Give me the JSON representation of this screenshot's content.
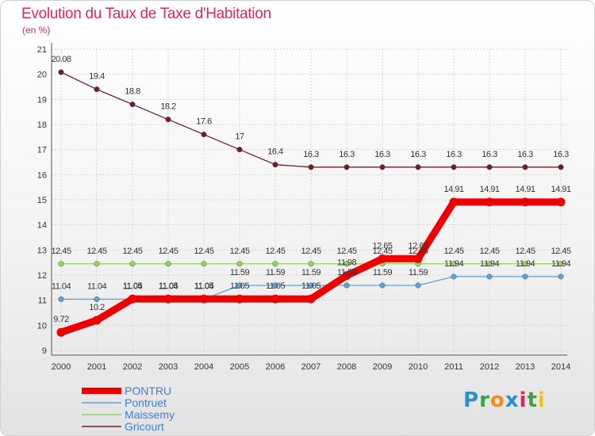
{
  "title": "Evolution du Taux de Taxe d'Habitation",
  "subtitle": "(en %)",
  "brand": {
    "letters": [
      "P",
      "r",
      "o",
      "x",
      "i",
      "t",
      "i"
    ],
    "colors": [
      "#2a8fd0",
      "#3ba43b",
      "#f28a1c",
      "#2a8fd0",
      "#e3245c",
      "#3ba43b",
      "#f2c21c"
    ]
  },
  "colors": {
    "title": "#e3245c",
    "grid": "#d4d4d4"
  },
  "chart_data": {
    "type": "line",
    "x": [
      2000,
      2001,
      2002,
      2003,
      2004,
      2005,
      2006,
      2007,
      2008,
      2009,
      2010,
      2011,
      2012,
      2013,
      2014
    ],
    "ylim": [
      9,
      21
    ],
    "yticks": [
      9,
      10,
      11,
      12,
      13,
      14,
      15,
      16,
      17,
      18,
      19,
      20,
      21
    ],
    "grid": true,
    "legend_position": "bottom-left",
    "series": [
      {
        "name": "Gricourt",
        "color": "#6e1f24",
        "values": [
          20.08,
          19.4,
          18.8,
          18.2,
          17.6,
          17,
          16.4,
          16.3,
          16.3,
          16.3,
          16.3,
          16.3,
          16.3,
          16.3,
          16.3
        ],
        "labels": [
          "20.08",
          "19.4",
          "18.8",
          "18.2",
          "17.6",
          "17",
          "16.4",
          "16.3",
          "16.3",
          "16.3",
          "16.3",
          "16.3",
          "16.3",
          "16.3",
          "16.3"
        ]
      },
      {
        "name": "Maissemy",
        "color": "#8fd45c",
        "values": [
          12.45,
          12.45,
          12.45,
          12.45,
          12.45,
          12.45,
          12.45,
          12.45,
          12.45,
          12.45,
          12.45,
          12.45,
          12.45,
          12.45,
          12.45
        ],
        "labels": [
          "12.45",
          "12.45",
          "12.45",
          "12.45",
          "12.45",
          "12.45",
          "12.45",
          "12.45",
          "12.45",
          "12.45",
          "12.45",
          "12.45",
          "12.45",
          "12.45",
          "12.45"
        ]
      },
      {
        "name": "Pontruet",
        "color": "#5ba3d9",
        "values": [
          11.04,
          11.04,
          11.04,
          11.04,
          11.04,
          11.59,
          11.59,
          11.59,
          11.59,
          11.59,
          11.59,
          11.94,
          11.94,
          11.94,
          11.94
        ],
        "labels": [
          "11.04",
          "11.04",
          "11.04",
          "11.04",
          "11.04",
          "11.59",
          "11.59",
          "11.59",
          "11.59",
          "11.59",
          "11.59",
          "11.94",
          "11.94",
          "11.94",
          "11.94"
        ]
      },
      {
        "name": "PONTRU",
        "color": "#ee0000",
        "values": [
          9.72,
          10.2,
          11.05,
          11.05,
          11.05,
          11.05,
          11.05,
          11.05,
          11.98,
          12.65,
          12.65,
          14.91,
          14.91,
          14.91,
          14.91
        ],
        "labels": [
          "9.72",
          "10.2",
          "11.05",
          "11.05",
          "11.05",
          "11.05",
          "11.05",
          "11.05",
          "11.98",
          "12.65",
          "12.65",
          "14.91",
          "14.91",
          "14.91",
          "14.91"
        ]
      }
    ],
    "legend": [
      "PONTRU",
      "Pontruet",
      "Maissemy",
      "Gricourt"
    ]
  }
}
